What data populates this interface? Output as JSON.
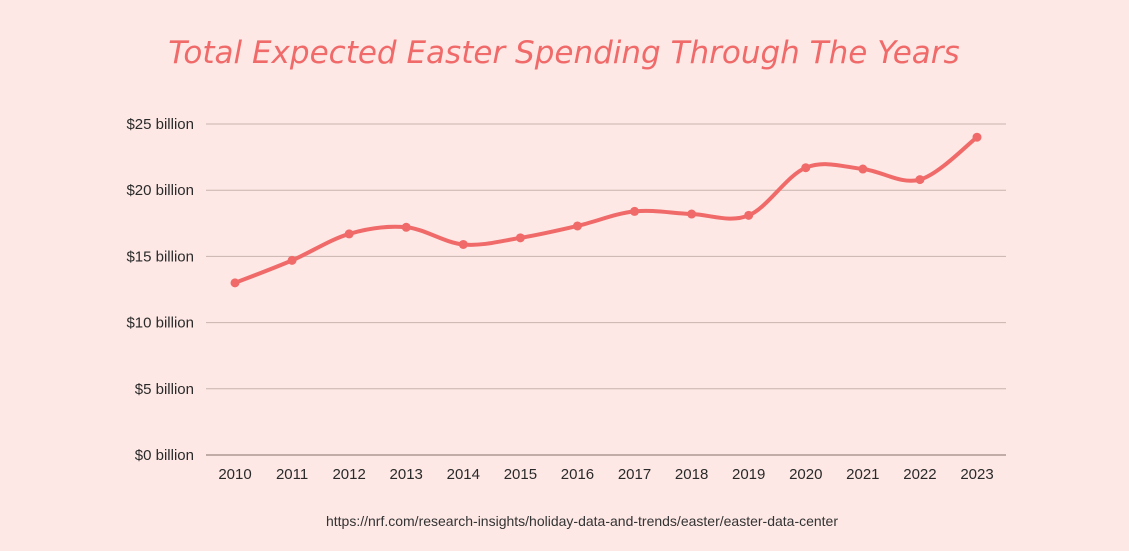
{
  "colors": {
    "background": "#fde8e5",
    "accent": "#f06a6a",
    "gridline": "#c9b3ae",
    "text": "#2a2a2a"
  },
  "source": "https://nrf.com/research-insights/holiday-data-and-trends/easter/easter-data-center",
  "chart_data": {
    "type": "line",
    "title": "Total Expected Easter Spending Through The Years",
    "xlabel": "",
    "ylabel": "",
    "categories": [
      "2010",
      "2011",
      "2012",
      "2013",
      "2014",
      "2015",
      "2016",
      "2017",
      "2018",
      "2019",
      "2020",
      "2021",
      "2022",
      "2023"
    ],
    "series": [
      {
        "values": [
          13.0,
          14.7,
          16.7,
          17.2,
          15.9,
          16.4,
          17.3,
          18.4,
          18.2,
          18.1,
          21.7,
          21.6,
          20.8,
          24.0
        ]
      }
    ],
    "ylim": [
      0,
      25
    ],
    "yticks": [
      0,
      5,
      10,
      15,
      20,
      25
    ],
    "ytick_labels": [
      "$0 billion",
      "$5 billion",
      "$10 billion",
      "$15 billion",
      "$20 billion",
      "$25 billion"
    ],
    "grid": true,
    "legend": "none",
    "smooth": true
  }
}
